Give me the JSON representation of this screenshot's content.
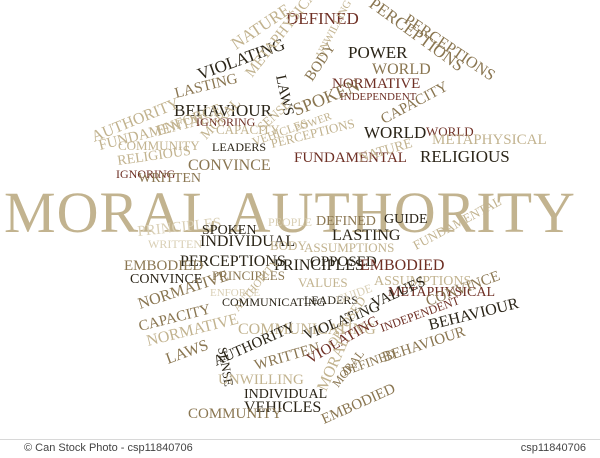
{
  "palette": {
    "dark": "#2a2417",
    "brown": "#8a7651",
    "tan": "#c2b38f",
    "light": "#d9cfb5",
    "red": "#6e2f24"
  },
  "footer": {
    "credit": "© Can Stock Photo - csp11840706",
    "image_id": "csp11840706"
  },
  "words": [
    {
      "text": "MORAL AUTHORITY",
      "tone": "tan"
    },
    {
      "text": "DEFINED",
      "tone": "red"
    },
    {
      "text": "PERCEPTIONS",
      "tone": "brown"
    },
    {
      "text": "NATURE",
      "tone": "tan"
    },
    {
      "text": "VIOLATING",
      "tone": "dark"
    },
    {
      "text": "POWER",
      "tone": "dark"
    },
    {
      "text": "PERCEPTIONS",
      "tone": "brown"
    },
    {
      "text": "WORLD",
      "tone": "brown"
    },
    {
      "text": "NORMATIVE",
      "tone": "red"
    },
    {
      "text": "INDEPENDENT",
      "tone": "red"
    },
    {
      "text": "METAPHYSICAL",
      "tone": "tan"
    },
    {
      "text": "LASTING",
      "tone": "brown"
    },
    {
      "text": "BEHAVIOUR",
      "tone": "dark"
    },
    {
      "text": "LAWS",
      "tone": "dark"
    },
    {
      "text": "BODY",
      "tone": "brown"
    },
    {
      "text": "UNWILLING",
      "tone": "tan"
    },
    {
      "text": "AUTHORITY",
      "tone": "tan"
    },
    {
      "text": "FUNDAMENTAL",
      "tone": "tan"
    },
    {
      "text": "ENFORCE",
      "tone": "tan"
    },
    {
      "text": "IGNORING",
      "tone": "red"
    },
    {
      "text": "SPOKEN",
      "tone": "brown"
    },
    {
      "text": "CAPACITY",
      "tone": "brown"
    },
    {
      "text": "WORLD",
      "tone": "dark"
    },
    {
      "text": "WORLD",
      "tone": "red"
    },
    {
      "text": "METAPHYSICAL",
      "tone": "tan"
    },
    {
      "text": "MORAL",
      "tone": "tan"
    },
    {
      "text": "SENSE",
      "tone": "tan"
    },
    {
      "text": "CAPACITY",
      "tone": "tan"
    },
    {
      "text": "VEHICLES",
      "tone": "tan"
    },
    {
      "text": "POWER",
      "tone": "tan"
    },
    {
      "text": "LEADERS",
      "tone": "dark"
    },
    {
      "text": "PERCEPTIONS",
      "tone": "tan"
    },
    {
      "text": "FUNDAMENTAL",
      "tone": "red"
    },
    {
      "text": "NATURE",
      "tone": "tan"
    },
    {
      "text": "RELIGIOUS",
      "tone": "dark"
    },
    {
      "text": "COMMUNITY",
      "tone": "tan"
    },
    {
      "text": "RELIGIOUS",
      "tone": "tan"
    },
    {
      "text": "IGNORING",
      "tone": "red"
    },
    {
      "text": "CONVINCE",
      "tone": "brown"
    },
    {
      "text": "WRITTEN",
      "tone": "brown"
    },
    {
      "text": "PRINCIPLES",
      "tone": "light"
    },
    {
      "text": "SPOKEN",
      "tone": "dark"
    },
    {
      "text": "PEOPLE",
      "tone": "light"
    },
    {
      "text": "DEFINED",
      "tone": "brown"
    },
    {
      "text": "GUIDE",
      "tone": "dark"
    },
    {
      "text": "WRITTEN",
      "tone": "light"
    },
    {
      "text": "INDIVIDUAL",
      "tone": "dark"
    },
    {
      "text": "LASTING",
      "tone": "dark"
    },
    {
      "text": "BODY",
      "tone": "tan"
    },
    {
      "text": "ASSUMPTIONS",
      "tone": "tan"
    },
    {
      "text": "FUNDAMENTAL",
      "tone": "tan"
    },
    {
      "text": "PERCEPTIONS",
      "tone": "dark"
    },
    {
      "text": "OPPOSED",
      "tone": "dark"
    },
    {
      "text": "PRINCIPLES",
      "tone": "dark"
    },
    {
      "text": "EMBODIED",
      "tone": "brown"
    },
    {
      "text": "EMBODIED",
      "tone": "red"
    },
    {
      "text": "CONVINCE",
      "tone": "dark"
    },
    {
      "text": "PRINCIPLES",
      "tone": "brown"
    },
    {
      "text": "ASSUMPTIONS",
      "tone": "tan"
    },
    {
      "text": "VALUES",
      "tone": "tan"
    },
    {
      "text": "METAPHYSICAL",
      "tone": "red"
    },
    {
      "text": "NORMATIVE",
      "tone": "brown"
    },
    {
      "text": "ENFORCE",
      "tone": "light"
    },
    {
      "text": "AUTHORITY",
      "tone": "tan"
    },
    {
      "text": "COMMUNICATING",
      "tone": "dark"
    },
    {
      "text": "LEADERS",
      "tone": "dark"
    },
    {
      "text": "GUIDE",
      "tone": "light"
    },
    {
      "text": "VALUES",
      "tone": "dark"
    },
    {
      "text": "CONVINCE",
      "tone": "brown"
    },
    {
      "text": "CAPACITY",
      "tone": "brown"
    },
    {
      "text": "SENSE",
      "tone": "dark"
    },
    {
      "text": "COMMUNICATING",
      "tone": "tan"
    },
    {
      "text": "VIOLATING",
      "tone": "dark"
    },
    {
      "text": "INDEPENDENT",
      "tone": "red"
    },
    {
      "text": "BEHAVIOUR",
      "tone": "dark"
    },
    {
      "text": "NORMATIVE",
      "tone": "tan"
    },
    {
      "text": "LAWS",
      "tone": "brown"
    },
    {
      "text": "AUTHORITY",
      "tone": "dark"
    },
    {
      "text": "WRITTEN",
      "tone": "brown"
    },
    {
      "text": "OPPOSED",
      "tone": "tan"
    },
    {
      "text": "VIOLATING",
      "tone": "red"
    },
    {
      "text": "DEFINED",
      "tone": "brown"
    },
    {
      "text": "MORAL",
      "tone": "brown"
    },
    {
      "text": "BEHAVIOUR",
      "tone": "brown"
    },
    {
      "text": "UNWILLING",
      "tone": "tan"
    },
    {
      "text": "MORAL",
      "tone": "tan"
    },
    {
      "text": "INDIVIDUAL",
      "tone": "dark"
    },
    {
      "text": "EMBODIED",
      "tone": "brown"
    },
    {
      "text": "VEHICLES",
      "tone": "dark"
    },
    {
      "text": "COMMUNITY",
      "tone": "brown"
    }
  ]
}
